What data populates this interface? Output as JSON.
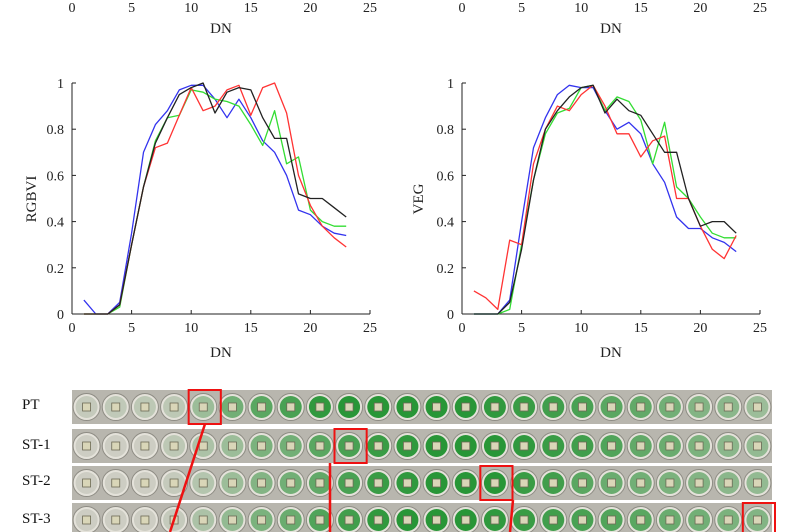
{
  "colors": {
    "red": "#ff3333",
    "green": "#33dd33",
    "blue": "#3333ee",
    "black": "#222222",
    "highlight": "#ee1111"
  },
  "top_axes": [
    {
      "xlabel": "DN",
      "ticks": [
        "0",
        "5",
        "10",
        "15",
        "20",
        "25"
      ]
    },
    {
      "xlabel": "DN",
      "ticks": [
        "0",
        "5",
        "10",
        "15",
        "20",
        "25"
      ]
    }
  ],
  "chart_data": [
    {
      "type": "line",
      "title": "",
      "xlabel": "DN",
      "ylabel": "RGBVI",
      "xlim": [
        0,
        25
      ],
      "ylim": [
        0,
        1
      ],
      "xticks": [
        "0",
        "5",
        "10",
        "15",
        "20",
        "25"
      ],
      "yticks": [
        "0",
        "0.2",
        "0.4",
        "0.6",
        "0.8",
        "1"
      ],
      "x": [
        1,
        2,
        3,
        4,
        5,
        6,
        7,
        8,
        9,
        10,
        11,
        12,
        13,
        14,
        15,
        16,
        17,
        18,
        19,
        20,
        21,
        22,
        23
      ],
      "series": [
        {
          "name": "blue",
          "color": "#3333ee",
          "values": [
            0.06,
            0.0,
            0.0,
            0.05,
            0.35,
            0.7,
            0.82,
            0.88,
            0.97,
            0.99,
            0.99,
            0.93,
            0.85,
            0.93,
            0.85,
            0.75,
            0.7,
            0.6,
            0.45,
            0.43,
            0.38,
            0.35,
            0.34
          ]
        },
        {
          "name": "green",
          "color": "#33dd33",
          "values": [
            0.0,
            0.0,
            0.0,
            0.03,
            0.3,
            0.55,
            0.75,
            0.85,
            0.86,
            0.97,
            0.96,
            0.93,
            0.92,
            0.9,
            0.82,
            0.73,
            0.88,
            0.65,
            0.68,
            0.45,
            0.4,
            0.38,
            0.38
          ]
        },
        {
          "name": "red",
          "color": "#ff3333",
          "values": [
            0.0,
            0.0,
            0.0,
            0.04,
            0.3,
            0.55,
            0.72,
            0.74,
            0.86,
            0.98,
            0.88,
            0.9,
            0.97,
            0.99,
            0.86,
            0.98,
            1.0,
            0.87,
            0.6,
            0.47,
            0.38,
            0.33,
            0.29
          ]
        },
        {
          "name": "black",
          "color": "#222222",
          "values": [
            0.0,
            0.0,
            0.0,
            0.04,
            0.3,
            0.55,
            0.74,
            0.85,
            0.95,
            0.98,
            1.0,
            0.87,
            0.96,
            0.98,
            0.97,
            0.85,
            0.76,
            0.76,
            0.52,
            0.5,
            0.5,
            0.46,
            0.42
          ]
        }
      ]
    },
    {
      "type": "line",
      "title": "",
      "xlabel": "DN",
      "ylabel": "VEG",
      "xlim": [
        0,
        25
      ],
      "ylim": [
        0,
        1
      ],
      "xticks": [
        "0",
        "5",
        "10",
        "15",
        "20",
        "25"
      ],
      "yticks": [
        "0",
        "0.2",
        "0.4",
        "0.6",
        "0.8",
        "1"
      ],
      "x": [
        1,
        2,
        3,
        4,
        5,
        6,
        7,
        8,
        9,
        10,
        11,
        12,
        13,
        14,
        15,
        16,
        17,
        18,
        19,
        20,
        21,
        22,
        23
      ],
      "series": [
        {
          "name": "blue",
          "color": "#3333ee",
          "values": [
            0.0,
            0.0,
            0.0,
            0.06,
            0.4,
            0.72,
            0.85,
            0.95,
            0.99,
            0.98,
            0.98,
            0.88,
            0.8,
            0.83,
            0.78,
            0.65,
            0.57,
            0.42,
            0.37,
            0.37,
            0.33,
            0.31,
            0.27
          ]
        },
        {
          "name": "green",
          "color": "#33dd33",
          "values": [
            0.0,
            0.0,
            0.0,
            0.02,
            0.3,
            0.58,
            0.78,
            0.87,
            0.89,
            0.98,
            0.99,
            0.88,
            0.94,
            0.92,
            0.84,
            0.65,
            0.83,
            0.55,
            0.5,
            0.42,
            0.35,
            0.33,
            0.33
          ]
        },
        {
          "name": "red",
          "color": "#ff3333",
          "values": [
            0.1,
            0.07,
            0.02,
            0.32,
            0.3,
            0.65,
            0.8,
            0.9,
            0.88,
            0.95,
            0.99,
            0.9,
            0.78,
            0.78,
            0.68,
            0.75,
            0.77,
            0.5,
            0.5,
            0.38,
            0.28,
            0.24,
            0.34
          ]
        },
        {
          "name": "black",
          "color": "#222222",
          "values": [
            0.0,
            0.0,
            0.0,
            0.05,
            0.28,
            0.58,
            0.8,
            0.88,
            0.94,
            0.98,
            0.99,
            0.87,
            0.93,
            0.88,
            0.86,
            0.78,
            0.7,
            0.7,
            0.5,
            0.38,
            0.4,
            0.4,
            0.35
          ]
        }
      ]
    }
  ],
  "strips": [
    {
      "label": "PT",
      "highlight_index": 4,
      "green_levels": [
        0.05,
        0.08,
        0.1,
        0.1,
        0.3,
        0.55,
        0.7,
        0.8,
        0.95,
        1,
        1,
        1,
        1,
        1,
        0.95,
        0.9,
        0.85,
        0.8,
        0.7,
        0.65,
        0.55,
        0.45,
        0.4,
        0.3
      ]
    },
    {
      "label": "ST-1",
      "highlight_index": 9,
      "green_levels": [
        0.0,
        0.0,
        0.0,
        0.1,
        0.2,
        0.3,
        0.5,
        0.55,
        0.7,
        0.8,
        0.9,
        0.95,
        1,
        1,
        1,
        0.95,
        0.9,
        0.85,
        0.75,
        0.65,
        0.6,
        0.5,
        0.4,
        0.35
      ]
    },
    {
      "label": "ST-2",
      "highlight_index": 14,
      "green_levels": [
        0.0,
        0.0,
        0.0,
        0.05,
        0.15,
        0.3,
        0.45,
        0.55,
        0.65,
        0.8,
        0.9,
        0.95,
        1,
        1,
        1,
        0.9,
        0.85,
        0.7,
        0.6,
        0.55,
        0.5,
        0.45,
        0.4,
        0.35
      ]
    },
    {
      "label": "ST-3",
      "highlight_index": 23,
      "green_levels": [
        0.0,
        0.0,
        0.0,
        0.05,
        0.2,
        0.35,
        0.5,
        0.6,
        0.75,
        0.85,
        0.95,
        1,
        1,
        1,
        0.95,
        0.9,
        0.85,
        0.8,
        0.75,
        0.7,
        0.6,
        0.55,
        0.5,
        0.45
      ]
    }
  ]
}
